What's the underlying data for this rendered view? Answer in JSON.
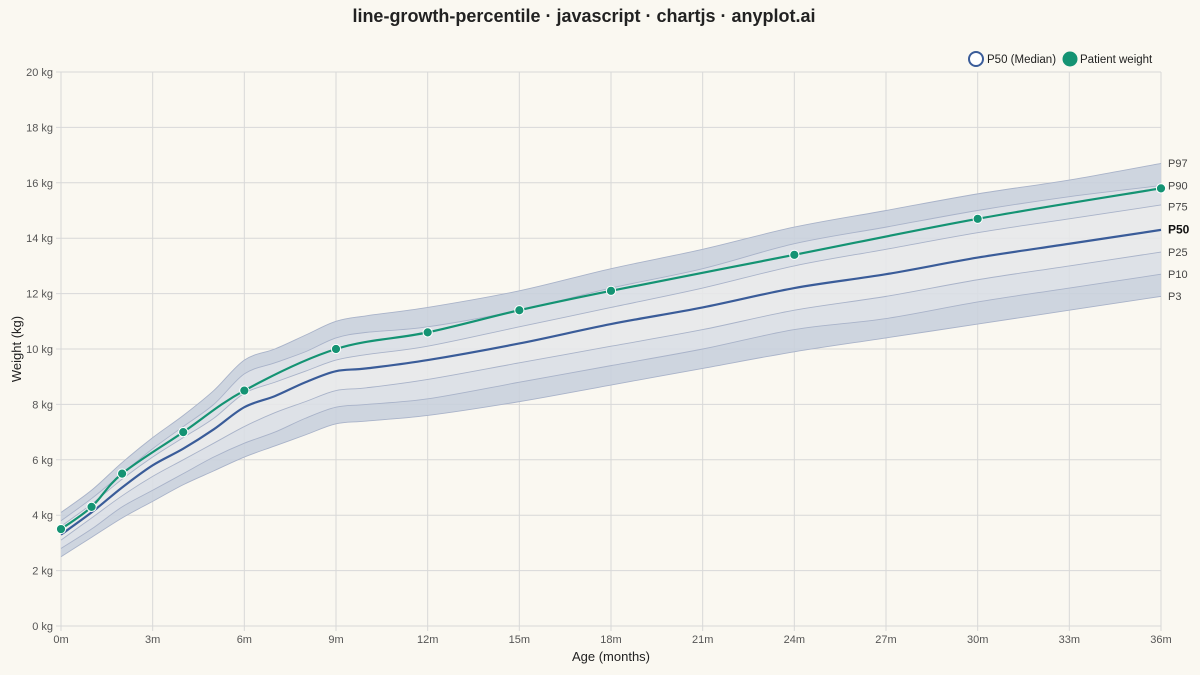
{
  "chart_data": {
    "type": "line",
    "title": "line-growth-percentile · javascript · chartjs · anyplot.ai",
    "xlabel": "Age (months)",
    "ylabel": "Weight (kg)",
    "xlim": [
      0,
      36
    ],
    "ylim": [
      0,
      20
    ],
    "x_tick_labels": [
      "0m",
      "3m",
      "6m",
      "9m",
      "12m",
      "15m",
      "18m",
      "21m",
      "24m",
      "27m",
      "30m",
      "33m",
      "36m"
    ],
    "y_tick_labels": [
      "0 kg",
      "2 kg",
      "4 kg",
      "6 kg",
      "8 kg",
      "10 kg",
      "12 kg",
      "14 kg",
      "16 kg",
      "18 kg",
      "20 kg"
    ],
    "grid": true,
    "legend_position": "top-right",
    "percentile_x": [
      0,
      1,
      2,
      3,
      4,
      5,
      6,
      7,
      8,
      9,
      10,
      12,
      15,
      18,
      21,
      24,
      27,
      30,
      33,
      36
    ],
    "percentiles": [
      {
        "name": "P3",
        "values": [
          2.5,
          3.2,
          3.9,
          4.5,
          5.1,
          5.6,
          6.1,
          6.5,
          6.9,
          7.3,
          7.4,
          7.6,
          8.1,
          8.7,
          9.3,
          9.9,
          10.4,
          10.9,
          11.4,
          11.9
        ]
      },
      {
        "name": "P10",
        "values": [
          2.8,
          3.5,
          4.3,
          4.9,
          5.5,
          6.1,
          6.6,
          7.0,
          7.5,
          7.9,
          8.0,
          8.2,
          8.8,
          9.4,
          10.0,
          10.7,
          11.1,
          11.7,
          12.2,
          12.7
        ]
      },
      {
        "name": "P25",
        "values": [
          3.1,
          3.9,
          4.7,
          5.4,
          6.0,
          6.6,
          7.2,
          7.7,
          8.1,
          8.5,
          8.6,
          8.9,
          9.5,
          10.1,
          10.7,
          11.4,
          11.9,
          12.5,
          13.0,
          13.5
        ]
      },
      {
        "name": "P50",
        "values": [
          3.3,
          4.1,
          5.0,
          5.8,
          6.4,
          7.1,
          7.9,
          8.3,
          8.8,
          9.2,
          9.3,
          9.6,
          10.2,
          10.9,
          11.5,
          12.2,
          12.7,
          13.3,
          13.8,
          14.3
        ]
      },
      {
        "name": "P75",
        "values": [
          3.6,
          4.4,
          5.3,
          6.1,
          6.8,
          7.5,
          8.4,
          8.8,
          9.2,
          9.6,
          9.8,
          10.1,
          10.8,
          11.5,
          12.2,
          13.0,
          13.6,
          14.2,
          14.7,
          15.2
        ]
      },
      {
        "name": "P90",
        "values": [
          3.8,
          4.6,
          5.5,
          6.4,
          7.2,
          8.0,
          9.1,
          9.5,
          9.9,
          10.4,
          10.6,
          10.8,
          11.4,
          12.2,
          12.9,
          13.8,
          14.4,
          15.0,
          15.5,
          15.9
        ]
      },
      {
        "name": "P97",
        "values": [
          4.1,
          4.9,
          5.9,
          6.8,
          7.6,
          8.5,
          9.6,
          10.0,
          10.5,
          11.0,
          11.2,
          11.5,
          12.1,
          12.9,
          13.6,
          14.4,
          15.0,
          15.6,
          16.1,
          16.7
        ]
      }
    ],
    "patient": {
      "name": "Patient weight",
      "x": [
        0,
        1,
        2,
        4,
        6,
        9,
        12,
        15,
        18,
        24,
        30,
        36
      ],
      "values": [
        3.5,
        4.3,
        5.5,
        7.0,
        8.5,
        10.0,
        10.6,
        11.4,
        12.1,
        13.4,
        14.7,
        15.8
      ]
    },
    "legend": [
      "P50 (Median)",
      "Patient weight"
    ],
    "colors": {
      "median": "#3A5C99",
      "patient": "#149373",
      "outer_band": "#C9D0DD",
      "middle_band": "#D9DEE5",
      "inner_band": "#E7E8EA",
      "band_edge": "#A9B3C9",
      "grid": "#D8D8D8",
      "background": "#FAF8F1"
    }
  }
}
